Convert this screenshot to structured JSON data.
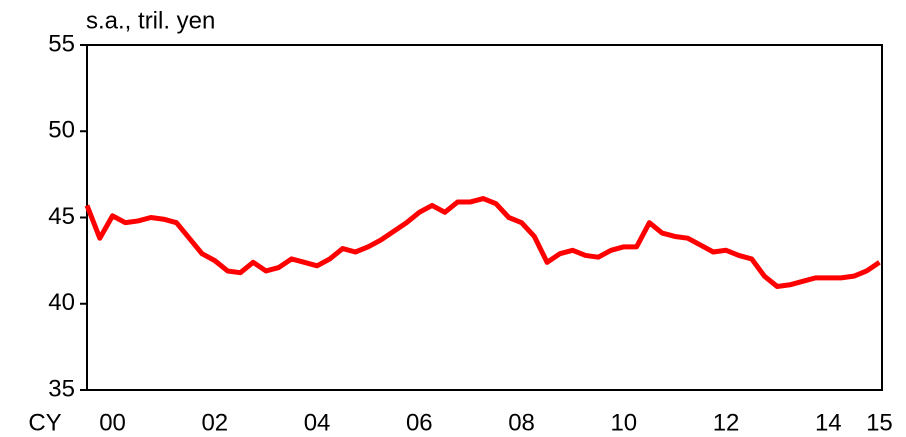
{
  "chart_data": {
    "type": "line",
    "y_axis_label": "s.a., tril. yen",
    "x_axis_label": "CY",
    "x": [
      2000,
      2000.25,
      2000.5,
      2000.75,
      2001,
      2001.25,
      2001.5,
      2001.75,
      2002,
      2002.25,
      2002.5,
      2002.75,
      2003,
      2003.25,
      2003.5,
      2003.75,
      2004,
      2004.25,
      2004.5,
      2004.75,
      2005,
      2005.25,
      2005.5,
      2005.75,
      2006,
      2006.25,
      2006.5,
      2006.75,
      2007,
      2007.25,
      2007.5,
      2007.75,
      2008,
      2008.25,
      2008.5,
      2008.75,
      2009,
      2009.25,
      2009.5,
      2009.75,
      2010,
      2010.25,
      2010.5,
      2010.75,
      2011,
      2011.25,
      2011.5,
      2011.75,
      2012,
      2012.25,
      2012.5,
      2012.75,
      2013,
      2013.25,
      2013.5,
      2013.75,
      2014,
      2014.25,
      2014.5,
      2014.75,
      2015,
      2015.25,
      2015.5
    ],
    "series": [
      {
        "color": "#ff0000",
        "values": [
          45.7,
          43.8,
          45.1,
          44.7,
          44.8,
          45.0,
          44.9,
          44.7,
          43.8,
          42.9,
          42.5,
          41.9,
          41.8,
          42.4,
          41.9,
          42.1,
          42.6,
          42.4,
          42.2,
          42.6,
          43.2,
          43.0,
          43.3,
          43.7,
          44.2,
          44.7,
          45.3,
          45.7,
          45.3,
          45.9,
          45.9,
          46.1,
          45.8,
          45.0,
          44.7,
          43.9,
          42.4,
          42.9,
          43.1,
          42.8,
          42.7,
          43.1,
          43.3,
          43.3,
          44.7,
          44.1,
          43.9,
          43.8,
          43.4,
          43.0,
          43.1,
          42.8,
          42.6,
          41.6,
          41.0,
          41.1,
          41.3,
          41.5,
          41.5,
          41.5,
          41.6,
          41.9,
          42.4
        ]
      }
    ],
    "xlim": [
      2000,
      2015.55
    ],
    "xticks": [
      {
        "value": 2000.5,
        "label": "00"
      },
      {
        "value": 2002.5,
        "label": "02"
      },
      {
        "value": 2004.5,
        "label": "04"
      },
      {
        "value": 2006.5,
        "label": "06"
      },
      {
        "value": 2008.5,
        "label": "08"
      },
      {
        "value": 2010.5,
        "label": "10"
      },
      {
        "value": 2012.5,
        "label": "12"
      },
      {
        "value": 2014.5,
        "label": "14"
      },
      {
        "value": 2015.5,
        "label": "15"
      }
    ],
    "ylim": [
      35,
      55
    ],
    "yticks": [
      35,
      40,
      45,
      50,
      55
    ],
    "grid": false
  }
}
